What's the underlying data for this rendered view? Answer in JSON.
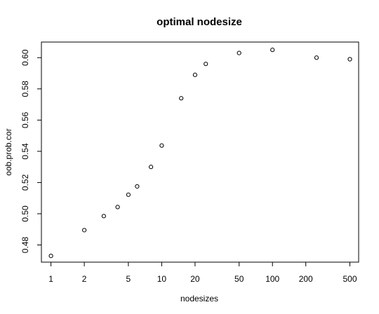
{
  "chart_data": {
    "type": "scatter",
    "title": "optimal nodesize",
    "xlabel": "nodesizes",
    "ylabel": "oob.prob.cor",
    "x_scale": "log",
    "xlim": [
      0.82,
      600
    ],
    "ylim": [
      0.469,
      0.61
    ],
    "x_ticks": [
      1,
      2,
      5,
      10,
      20,
      50,
      100,
      200,
      500
    ],
    "x_tick_labels": [
      "1",
      "2",
      "5",
      "10",
      "20",
      "50",
      "100",
      "200",
      "500"
    ],
    "y_ticks": [
      0.48,
      0.5,
      0.52,
      0.54,
      0.56,
      0.58,
      0.6
    ],
    "y_tick_labels": [
      "0.48",
      "0.50",
      "0.52",
      "0.54",
      "0.56",
      "0.58",
      "0.60"
    ],
    "grid": false,
    "point_style": "open-circle",
    "x": [
      1,
      2,
      3,
      4,
      5,
      6,
      8,
      10,
      15,
      20,
      25,
      50,
      100,
      250,
      500
    ],
    "y": [
      0.473,
      0.4895,
      0.4985,
      0.5043,
      0.5122,
      0.5175,
      0.53,
      0.5437,
      0.574,
      0.589,
      0.596,
      0.603,
      0.605,
      0.6,
      0.599
    ]
  }
}
